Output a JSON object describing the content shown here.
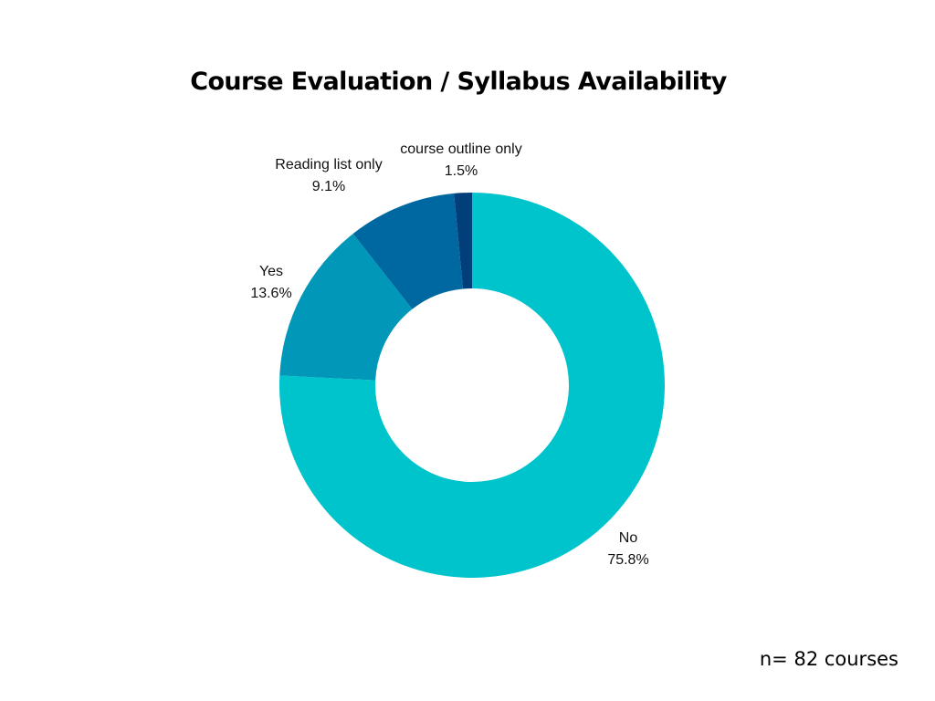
{
  "chart_data": {
    "type": "pie",
    "variant": "donut",
    "title": "Course Evaluation / Syllabus Availability",
    "slices": [
      {
        "label": "No",
        "value": 75.8,
        "value_label": "75.8%",
        "color": "#00c4cc"
      },
      {
        "label": "Yes",
        "value": 13.6,
        "value_label": "13.6%",
        "color": "#0097b9"
      },
      {
        "label": "Reading list only",
        "value": 9.1,
        "value_label": "9.1%",
        "color": "#0068a0"
      },
      {
        "label": "course outline only",
        "value": 1.5,
        "value_label": "1.5%",
        "color": "#003f7a"
      }
    ],
    "start_angle_deg": 0,
    "direction": "clockwise",
    "legend": "none",
    "data_labels": "outside"
  },
  "footnote": "n= 82 courses"
}
